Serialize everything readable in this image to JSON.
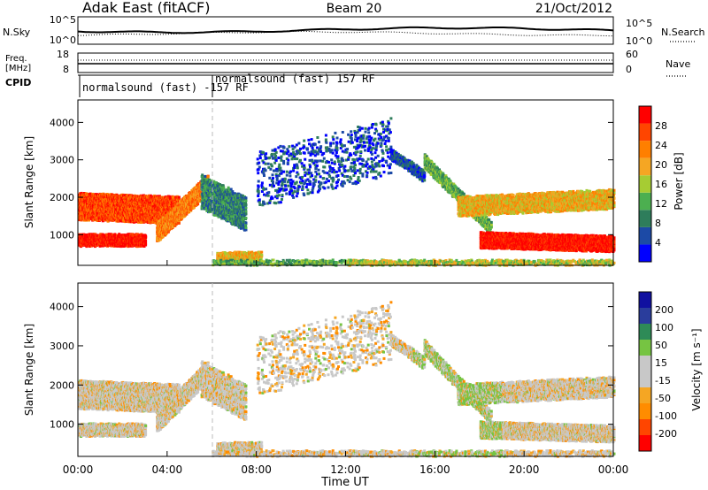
{
  "header": {
    "station": "Adak East (fitACF)",
    "beam": "Beam 20",
    "date": "21/Oct/2012"
  },
  "top_panel": {
    "left_label": "N.Sky",
    "right_label": "N.Search",
    "left_ticks": [
      "10^5",
      "10^0"
    ],
    "right_ticks": [
      "10^5",
      "10^0"
    ]
  },
  "freq_panel": {
    "left_label_line1": "Freq.",
    "left_label_line2": "[MHz]",
    "left_ticks": [
      "18",
      "8"
    ],
    "right_label": "Nave",
    "right_ticks": [
      "60",
      "0"
    ]
  },
  "cpid": {
    "label": "CPID",
    "mode_a": "normalsound (fast) -157 RF",
    "mode_b": "normalsound (fast) 157 RF"
  },
  "colors": {
    "power": [
      "#0000ff",
      "#1c4aa6",
      "#2e7d5b",
      "#4caf50",
      "#a6cc33",
      "#f5a623",
      "#ff7f00",
      "#ff4500",
      "#ff0000"
    ],
    "velocity": [
      "#1010a0",
      "#2a3d9c",
      "#2e8b57",
      "#76c442",
      "#c8c8c8",
      "#c8c8c8",
      "#f5a623",
      "#ff8c00",
      "#ff4500",
      "#ff0000"
    ],
    "empty": "#ffffff"
  },
  "chart_data": [
    {
      "type": "heatmap",
      "panel": "power",
      "xlabel": "",
      "ylabel": "Slant Range [km]",
      "xlim": [
        0,
        24
      ],
      "ylim": [
        180,
        4600
      ],
      "yticks": [
        "1000",
        "2000",
        "3000",
        "4000"
      ],
      "colorbar_label": "Power [dB]",
      "colorbar_ticks": [
        "4",
        "8",
        "12",
        "16",
        "20",
        "24",
        "28"
      ]
    },
    {
      "type": "heatmap",
      "panel": "velocity",
      "xlabel": "Time UT",
      "ylabel": "Slant Range [km]",
      "xlim": [
        0,
        24
      ],
      "ylim": [
        180,
        4600
      ],
      "xticks": [
        "00:00",
        "04:00",
        "08:00",
        "12:00",
        "16:00",
        "20:00",
        "00:00"
      ],
      "yticks": [
        "1000",
        "2000",
        "3000",
        "4000"
      ],
      "colorbar_label": "Velocity [m s⁻¹]",
      "colorbar_ticks": [
        "200",
        "100",
        "50",
        "15",
        "-15",
        "-50",
        "-100",
        "-200"
      ]
    }
  ]
}
